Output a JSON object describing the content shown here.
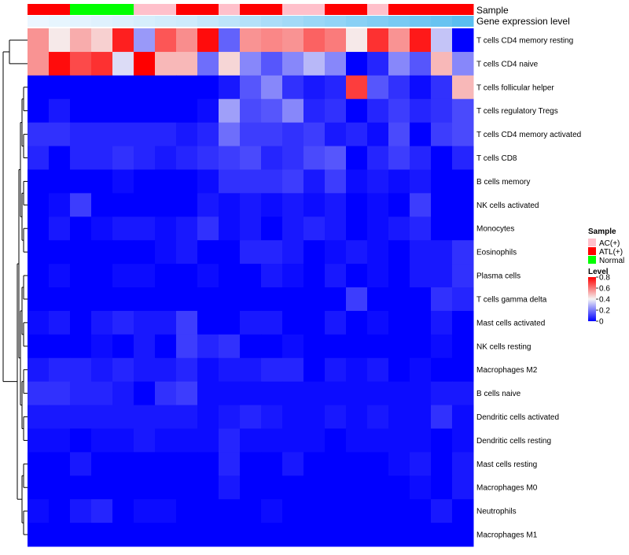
{
  "chart_data": {
    "type": "heatmap",
    "title": "",
    "annotation_labels": {
      "sample": "Sample",
      "gene_expression": "Gene expression level"
    },
    "rows": [
      "T cells CD4 memory resting",
      "T cells CD4 naive",
      "T cells follicular helper",
      "T cells regulatory  Tregs",
      "T cells CD4 memory activated",
      "T cells CD8",
      "B cells memory",
      "NK cells activated",
      "Monocytes",
      "Eosinophils",
      "Plasma cells",
      "T cells gamma delta",
      "Mast cells activated",
      "NK cells resting",
      "Macrophages M2",
      "B cells naive",
      "Dendritic cells activated",
      "Dendritic cells resting",
      "Mast cells resting",
      "Macrophages M0",
      "Neutrophils",
      "Macrophages M1"
    ],
    "sample_groups": [
      "ATL(+)",
      "ATL(+)",
      "Normal",
      "Normal",
      "Normal",
      "AC(+)",
      "AC(+)",
      "ATL(+)",
      "ATL(+)",
      "AC(+)",
      "ATL(+)",
      "ATL(+)",
      "AC(+)",
      "AC(+)",
      "ATL(+)",
      "ATL(+)",
      "AC(+)",
      "ATL(+)",
      "ATL(+)",
      "ATL(+)",
      "ATL(+)"
    ],
    "gene_expression_level": [
      0.02,
      0.04,
      0.06,
      0.08,
      0.1,
      0.12,
      0.14,
      0.16,
      0.2,
      0.24,
      0.28,
      0.32,
      0.36,
      0.4,
      0.44,
      0.48,
      0.52,
      0.56,
      0.6,
      0.64,
      0.7
    ],
    "values": [
      [
        0.56,
        0.42,
        0.52,
        0.46,
        0.75,
        0.25,
        0.66,
        0.57,
        0.78,
        0.16,
        0.56,
        0.58,
        0.56,
        0.64,
        0.6,
        0.42,
        0.72,
        0.56,
        0.76,
        0.32,
        0.0
      ],
      [
        0.56,
        0.78,
        0.68,
        0.72,
        0.36,
        0.8,
        0.5,
        0.5,
        0.18,
        0.45,
        0.22,
        0.14,
        0.22,
        0.3,
        0.22,
        0.0,
        0.06,
        0.22,
        0.14,
        0.5,
        0.22
      ],
      [
        0.0,
        0.0,
        0.0,
        0.0,
        0.0,
        0.0,
        0.0,
        0.0,
        0.0,
        0.04,
        0.14,
        0.22,
        0.08,
        0.04,
        0.06,
        0.7,
        0.14,
        0.08,
        0.02,
        0.08,
        0.5
      ],
      [
        0.0,
        0.04,
        0.0,
        0.0,
        0.0,
        0.0,
        0.0,
        0.0,
        0.02,
        0.26,
        0.12,
        0.14,
        0.22,
        0.06,
        0.08,
        0.0,
        0.06,
        0.1,
        0.06,
        0.08,
        0.12
      ],
      [
        0.08,
        0.08,
        0.06,
        0.06,
        0.06,
        0.06,
        0.06,
        0.04,
        0.06,
        0.18,
        0.1,
        0.1,
        0.08,
        0.1,
        0.04,
        0.06,
        0.02,
        0.12,
        0.0,
        0.1,
        0.12
      ],
      [
        0.06,
        0.0,
        0.06,
        0.06,
        0.08,
        0.06,
        0.04,
        0.06,
        0.08,
        0.1,
        0.12,
        0.06,
        0.08,
        0.12,
        0.14,
        0.0,
        0.06,
        0.1,
        0.06,
        0.0,
        0.06
      ],
      [
        0.0,
        0.0,
        0.0,
        0.0,
        0.02,
        0.0,
        0.0,
        0.0,
        0.02,
        0.08,
        0.08,
        0.08,
        0.1,
        0.04,
        0.1,
        0.02,
        0.04,
        0.02,
        0.04,
        0.0,
        0.0
      ],
      [
        0.0,
        0.02,
        0.1,
        0.0,
        0.0,
        0.0,
        0.0,
        0.0,
        0.04,
        0.02,
        0.04,
        0.02,
        0.04,
        0.02,
        0.04,
        0.0,
        0.02,
        0.0,
        0.1,
        0.0,
        0.0
      ],
      [
        0.0,
        0.04,
        0.0,
        0.02,
        0.04,
        0.04,
        0.02,
        0.04,
        0.08,
        0.02,
        0.04,
        0.0,
        0.04,
        0.06,
        0.04,
        0.0,
        0.02,
        0.04,
        0.06,
        0.0,
        0.0
      ],
      [
        0.0,
        0.0,
        0.0,
        0.0,
        0.0,
        0.0,
        0.02,
        0.04,
        0.0,
        0.0,
        0.06,
        0.06,
        0.04,
        0.0,
        0.02,
        0.04,
        0.02,
        0.0,
        0.04,
        0.04,
        0.08
      ],
      [
        0.0,
        0.02,
        0.0,
        0.0,
        0.02,
        0.02,
        0.0,
        0.0,
        0.02,
        0.0,
        0.0,
        0.04,
        0.02,
        0.0,
        0.04,
        0.0,
        0.02,
        0.0,
        0.04,
        0.04,
        0.08
      ],
      [
        0.0,
        0.0,
        0.0,
        0.0,
        0.0,
        0.0,
        0.0,
        0.0,
        0.0,
        0.0,
        0.0,
        0.0,
        0.0,
        0.0,
        0.0,
        0.1,
        0.0,
        0.0,
        0.0,
        0.08,
        0.06
      ],
      [
        0.02,
        0.04,
        0.0,
        0.04,
        0.06,
        0.04,
        0.04,
        0.1,
        0.0,
        0.0,
        0.04,
        0.04,
        0.0,
        0.0,
        0.04,
        0.0,
        0.02,
        0.0,
        0.0,
        0.04,
        0.0
      ],
      [
        0.0,
        0.0,
        0.0,
        0.02,
        0.0,
        0.04,
        0.0,
        0.1,
        0.06,
        0.08,
        0.0,
        0.0,
        0.02,
        0.0,
        0.0,
        0.0,
        0.0,
        0.0,
        0.0,
        0.02,
        0.0
      ],
      [
        0.04,
        0.06,
        0.06,
        0.04,
        0.06,
        0.04,
        0.04,
        0.06,
        0.02,
        0.04,
        0.04,
        0.06,
        0.06,
        0.0,
        0.04,
        0.02,
        0.04,
        0.0,
        0.02,
        0.0,
        0.0
      ],
      [
        0.08,
        0.08,
        0.06,
        0.06,
        0.04,
        0.0,
        0.08,
        0.1,
        0.02,
        0.02,
        0.02,
        0.02,
        0.02,
        0.02,
        0.02,
        0.02,
        0.02,
        0.02,
        0.02,
        0.04,
        0.04
      ],
      [
        0.04,
        0.04,
        0.04,
        0.04,
        0.04,
        0.04,
        0.04,
        0.04,
        0.02,
        0.04,
        0.06,
        0.04,
        0.02,
        0.02,
        0.04,
        0.02,
        0.04,
        0.02,
        0.02,
        0.08,
        0.02
      ],
      [
        0.02,
        0.02,
        0.0,
        0.02,
        0.02,
        0.04,
        0.02,
        0.02,
        0.02,
        0.06,
        0.02,
        0.02,
        0.02,
        0.02,
        0.0,
        0.02,
        0.02,
        0.02,
        0.02,
        0.0,
        0.02
      ],
      [
        0.0,
        0.0,
        0.04,
        0.0,
        0.0,
        0.0,
        0.0,
        0.0,
        0.0,
        0.06,
        0.0,
        0.0,
        0.04,
        0.0,
        0.0,
        0.0,
        0.0,
        0.02,
        0.04,
        0.0,
        0.04
      ],
      [
        0.0,
        0.0,
        0.0,
        0.0,
        0.0,
        0.0,
        0.0,
        0.0,
        0.0,
        0.04,
        0.0,
        0.0,
        0.0,
        0.0,
        0.0,
        0.0,
        0.0,
        0.0,
        0.02,
        0.0,
        0.04
      ],
      [
        0.02,
        0.0,
        0.04,
        0.06,
        0.0,
        0.02,
        0.02,
        0.0,
        0.0,
        0.0,
        0.0,
        0.02,
        0.0,
        0.0,
        0.0,
        0.0,
        0.0,
        0.0,
        0.0,
        0.04,
        0.0
      ],
      [
        0.0,
        0.0,
        0.0,
        0.0,
        0.0,
        0.0,
        0.0,
        0.0,
        0.0,
        0.0,
        0.0,
        0.0,
        0.0,
        0.0,
        0.0,
        0.0,
        0.0,
        0.0,
        0.0,
        0.0,
        0.0
      ]
    ],
    "color_range": [
      0,
      0.8
    ],
    "legend": {
      "sample_title": "Sample",
      "sample_entries": [
        {
          "name": "AC(+)",
          "color": "#ffc0cb"
        },
        {
          "name": "ATL(+)",
          "color": "#ff0000"
        },
        {
          "name": "Normal",
          "color": "#00ff00"
        }
      ],
      "level_title": "Level",
      "level_ticks": [
        "0.8",
        "0.6",
        "0.4",
        "0.2",
        "0"
      ],
      "level_tick_values": [
        0.8,
        0.6,
        0.4,
        0.2,
        0
      ],
      "placement": "right"
    },
    "colors": {
      "low": "#0000ff",
      "mid": "#f5f5f5",
      "high": "#ff0000"
    }
  }
}
